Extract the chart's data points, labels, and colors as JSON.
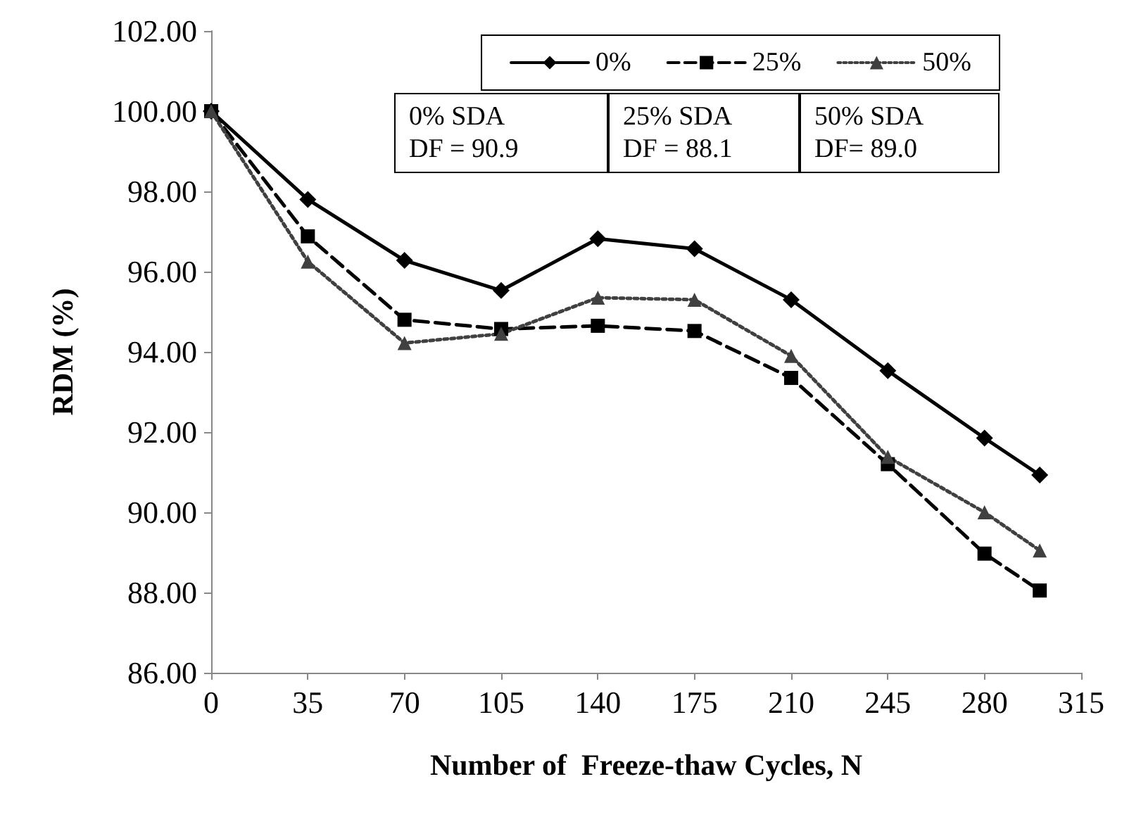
{
  "chart_data": {
    "type": "line",
    "xlabel": "Number of  Freeze-thaw Cycles, N",
    "ylabel": "RDM (%)",
    "x": [
      0,
      35,
      70,
      105,
      140,
      175,
      210,
      245,
      280,
      300
    ],
    "series": [
      {
        "name": "0%",
        "color": "#000000",
        "marker": "diamond",
        "line_style": "solid",
        "values": [
          100,
          97.8,
          96.28,
          95.53,
          96.82,
          96.57,
          95.3,
          93.53,
          91.85,
          90.93
        ]
      },
      {
        "name": "25%",
        "color": "#000000",
        "marker": "square",
        "line_style": "dashed",
        "values": [
          100,
          96.88,
          94.8,
          94.57,
          94.65,
          94.52,
          93.35,
          91.2,
          88.97,
          88.05
        ]
      },
      {
        "name": "50%",
        "color": "#404040",
        "marker": "triangle",
        "line_style": "dotted",
        "values": [
          100,
          96.25,
          94.22,
          94.45,
          95.35,
          95.3,
          93.9,
          91.38,
          90.0,
          89.05
        ]
      }
    ],
    "xlim": [
      0,
      315
    ],
    "xticks": [
      0,
      35,
      70,
      105,
      140,
      175,
      210,
      245,
      280,
      315
    ],
    "ylim": [
      86,
      102
    ],
    "yticks": [
      {
        "value": 86,
        "label": "86.00"
      },
      {
        "value": 88,
        "label": "88.00"
      },
      {
        "value": 90,
        "label": "90.00"
      },
      {
        "value": 92,
        "label": "92.00"
      },
      {
        "value": 94,
        "label": "94.00"
      },
      {
        "value": 96,
        "label": "96.00"
      },
      {
        "value": 98,
        "label": "98.00"
      },
      {
        "value": 100,
        "label": "100.00"
      },
      {
        "value": 102,
        "label": "102.00"
      }
    ],
    "annotations": [
      "0% SDA\nDF = 90.9",
      "25% SDA\nDF = 88.1",
      "50% SDA\nDF= 89.0"
    ],
    "grid": false,
    "legend": "top right"
  }
}
